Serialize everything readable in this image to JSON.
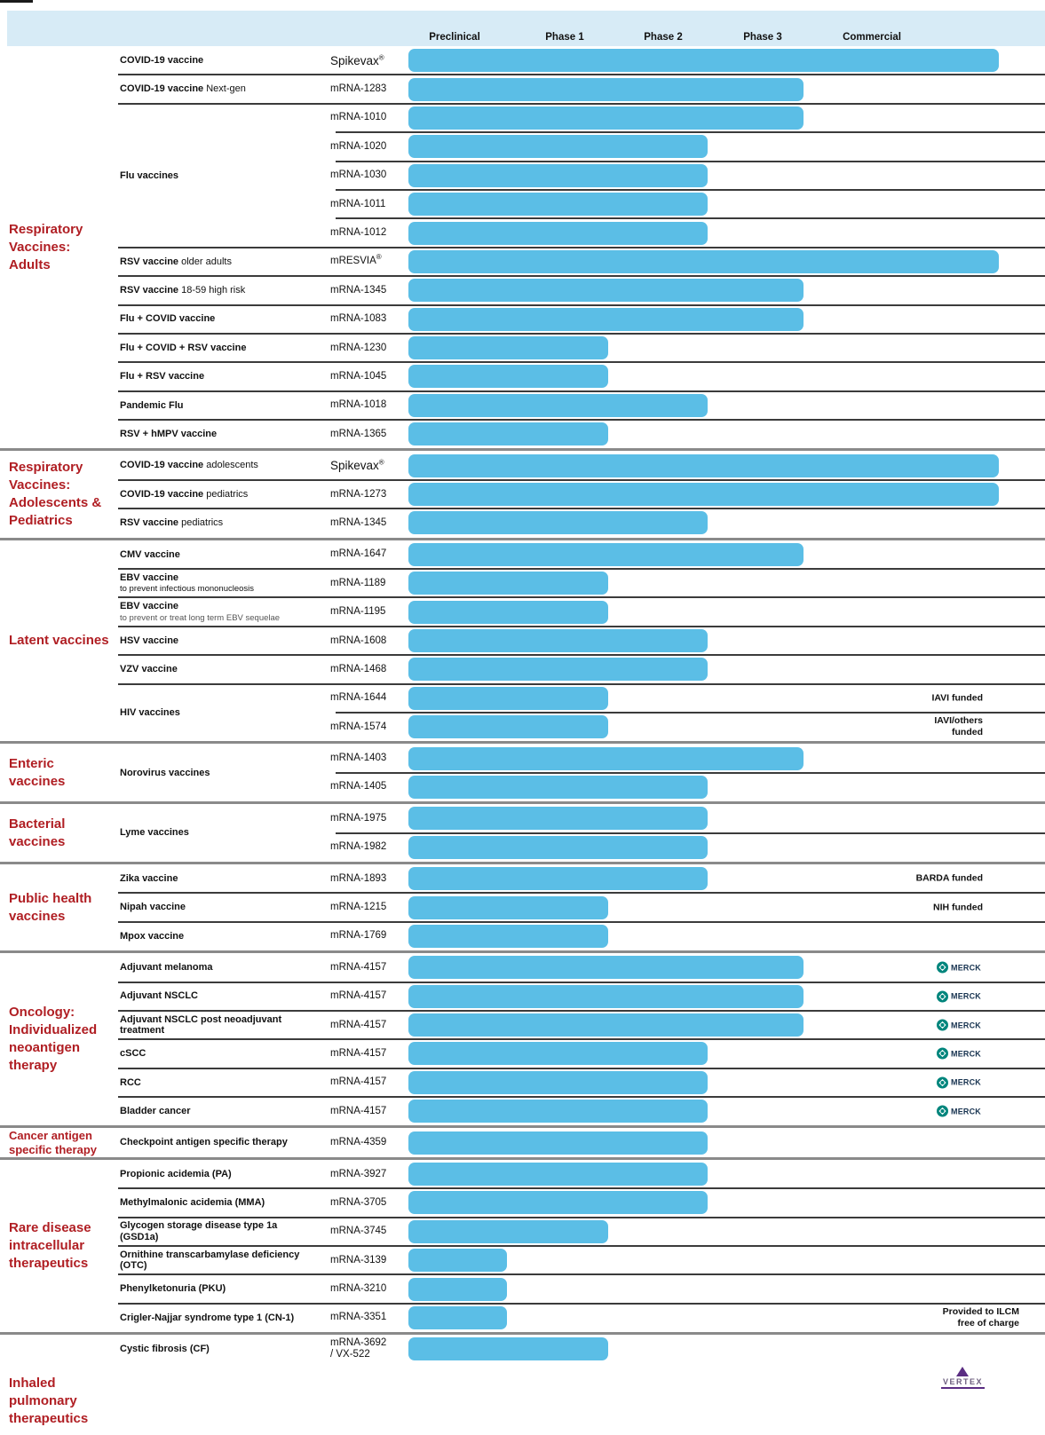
{
  "colors": {
    "bar_blue": "#5BBEE6",
    "header_band": "#D7EBF6",
    "category_red": "#B01E23",
    "separator_dark": "#3B3B3B",
    "separator_group": "#8A8A8A",
    "merck_teal": "#00857C",
    "vertex_purple": "#5A2D82"
  },
  "logos": {
    "merck": "MERCK",
    "vertex": "VERTEX"
  },
  "chart_data": {
    "type": "table",
    "title": "mRNA development pipeline by clinical phase",
    "phases": [
      "Preclinical",
      "Phase 1",
      "Phase 2",
      "Phase 3",
      "Commercial"
    ],
    "groups": [
      {
        "category": "Respiratory Vaccines: Adults",
        "programs": [
          {
            "name": "COVID-19 vaccine",
            "items": [
              {
                "code": "Spikevax",
                "reg": true,
                "stage": "commercial"
              }
            ]
          },
          {
            "name": "COVID-19 vaccine",
            "suffix": "Next-gen",
            "items": [
              {
                "code": "mRNA-1283",
                "stage": "phase3"
              }
            ]
          },
          {
            "name": "Flu vaccines",
            "items": [
              {
                "code": "mRNA-1010",
                "stage": "phase3"
              },
              {
                "code": "mRNA-1020",
                "stage": "phase2"
              },
              {
                "code": "mRNA-1030",
                "stage": "phase2"
              },
              {
                "code": "mRNA-1011",
                "stage": "phase2"
              },
              {
                "code": "mRNA-1012",
                "stage": "phase2"
              }
            ]
          },
          {
            "name": "RSV vaccine",
            "suffix": "older adults",
            "items": [
              {
                "code": "mRESVIA",
                "reg": true,
                "stage": "commercial"
              }
            ]
          },
          {
            "name": "RSV vaccine",
            "suffix": "18-59 high risk",
            "items": [
              {
                "code": "mRNA-1345",
                "stage": "phase3"
              }
            ]
          },
          {
            "name": "Flu + COVID vaccine",
            "items": [
              {
                "code": "mRNA-1083",
                "stage": "phase3"
              }
            ]
          },
          {
            "name": "Flu + COVID + RSV vaccine",
            "items": [
              {
                "code": "mRNA-1230",
                "stage": "phase1"
              }
            ]
          },
          {
            "name": "Flu + RSV vaccine",
            "items": [
              {
                "code": "mRNA-1045",
                "stage": "phase1"
              }
            ]
          },
          {
            "name": "Pandemic Flu",
            "items": [
              {
                "code": "mRNA-1018",
                "stage": "phase2"
              }
            ]
          },
          {
            "name": "RSV + hMPV vaccine",
            "items": [
              {
                "code": "mRNA-1365",
                "stage": "phase1"
              }
            ]
          }
        ]
      },
      {
        "category": "Respiratory Vaccines: Adolescents & Pediatrics",
        "programs": [
          {
            "name": "COVID-19 vaccine",
            "suffix": "adolescents",
            "items": [
              {
                "code": "Spikevax",
                "reg": true,
                "stage": "commercial"
              }
            ]
          },
          {
            "name": "COVID-19 vaccine",
            "suffix": "pediatrics",
            "items": [
              {
                "code": "mRNA-1273",
                "stage": "commercial"
              }
            ]
          },
          {
            "name": "RSV vaccine",
            "suffix": "pediatrics",
            "items": [
              {
                "code": "mRNA-1345",
                "stage": "phase2"
              }
            ]
          }
        ]
      },
      {
        "category": "Latent vaccines",
        "programs": [
          {
            "name": "CMV vaccine",
            "items": [
              {
                "code": "mRNA-1647",
                "stage": "phase3"
              }
            ]
          },
          {
            "name": "EBV vaccine",
            "subtitle": "to prevent infectious mononucleosis",
            "items": [
              {
                "code": "mRNA-1189",
                "stage": "phase1"
              }
            ]
          },
          {
            "name": "EBV vaccine",
            "subtitle": "to prevent or treat long term EBV sequelae",
            "subtitle_light": true,
            "items": [
              {
                "code": "mRNA-1195",
                "stage": "phase1"
              }
            ]
          },
          {
            "name": "HSV vaccine",
            "items": [
              {
                "code": "mRNA-1608",
                "stage": "phase2"
              }
            ]
          },
          {
            "name": "VZV vaccine",
            "items": [
              {
                "code": "mRNA-1468",
                "stage": "phase2"
              }
            ]
          },
          {
            "name": "HIV vaccines",
            "items": [
              {
                "code": "mRNA-1644",
                "stage": "phase1",
                "note": "IAVI funded"
              },
              {
                "code": "mRNA-1574",
                "stage": "phase1",
                "note": "IAVI/others\nfunded"
              }
            ]
          }
        ]
      },
      {
        "category": "Enteric vaccines",
        "programs": [
          {
            "name": "Norovirus vaccines",
            "items": [
              {
                "code": "mRNA-1403",
                "stage": "phase3"
              },
              {
                "code": "mRNA-1405",
                "stage": "phase2"
              }
            ]
          }
        ]
      },
      {
        "category": "Bacterial vaccines",
        "programs": [
          {
            "name": "Lyme vaccines",
            "items": [
              {
                "code": "mRNA-1975",
                "stage": "phase2"
              },
              {
                "code": "mRNA-1982",
                "stage": "phase2"
              }
            ]
          }
        ]
      },
      {
        "category": "Public health vaccines",
        "programs": [
          {
            "name": "Zika vaccine",
            "items": [
              {
                "code": "mRNA-1893",
                "stage": "phase2",
                "note": "BARDA funded"
              }
            ]
          },
          {
            "name": "Nipah vaccine",
            "items": [
              {
                "code": "mRNA-1215",
                "stage": "phase1",
                "note": "NIH funded"
              }
            ]
          },
          {
            "name": "Mpox vaccine",
            "items": [
              {
                "code": "mRNA-1769",
                "stage": "phase1"
              }
            ]
          }
        ]
      },
      {
        "category": "Oncology: Individualized neoantigen therapy",
        "programs": [
          {
            "name": "Adjuvant melanoma",
            "items": [
              {
                "code": "mRNA-4157",
                "stage": "phase3",
                "logo": "merck"
              }
            ]
          },
          {
            "name": "Adjuvant NSCLC",
            "items": [
              {
                "code": "mRNA-4157",
                "stage": "phase3",
                "logo": "merck"
              }
            ]
          },
          {
            "name": "Adjuvant NSCLC post neoadjuvant treatment",
            "items": [
              {
                "code": "mRNA-4157",
                "stage": "phase3",
                "logo": "merck"
              }
            ]
          },
          {
            "name": "cSCC",
            "items": [
              {
                "code": "mRNA-4157",
                "stage": "phase2",
                "logo": "merck"
              }
            ]
          },
          {
            "name": "RCC",
            "items": [
              {
                "code": "mRNA-4157",
                "stage": "phase2",
                "logo": "merck"
              }
            ]
          },
          {
            "name": "Bladder cancer",
            "items": [
              {
                "code": "mRNA-4157",
                "stage": "phase2",
                "logo": "merck"
              }
            ]
          }
        ]
      },
      {
        "category": "Cancer antigen specific therapy",
        "cat_small": true,
        "programs": [
          {
            "name": "Checkpoint antigen specific therapy",
            "items": [
              {
                "code": "mRNA-4359",
                "stage": "phase2"
              }
            ]
          }
        ]
      },
      {
        "category": "Rare disease intracellular therapeutics",
        "programs": [
          {
            "name": "Propionic acidemia (PA)",
            "items": [
              {
                "code": "mRNA-3927",
                "stage": "phase2"
              }
            ]
          },
          {
            "name": "Methylmalonic acidemia (MMA)",
            "items": [
              {
                "code": "mRNA-3705",
                "stage": "phase2"
              }
            ]
          },
          {
            "name": "Glycogen storage disease type 1a (GSD1a)",
            "items": [
              {
                "code": "mRNA-3745",
                "stage": "phase1"
              }
            ]
          },
          {
            "name": "Ornithine transcarbamylase deficiency (OTC)",
            "items": [
              {
                "code": "mRNA-3139",
                "stage": "preclinical"
              }
            ]
          },
          {
            "name": "Phenylketonuria (PKU)",
            "items": [
              {
                "code": "mRNA-3210",
                "stage": "preclinical"
              }
            ]
          },
          {
            "name": "Crigler-Najjar syndrome type 1 (CN-1)",
            "items": [
              {
                "code": "mRNA-3351",
                "stage": "preclinical",
                "note": "Provided to ILCM\nfree of charge"
              }
            ]
          }
        ]
      },
      {
        "category": "Inhaled pulmonary therapeutics",
        "programs": [
          {
            "name": "Cystic fibrosis (CF)",
            "items": [
              {
                "code": "mRNA-3692",
                "code2": "/ VX-522",
                "stage": "phase1",
                "logo": "vertex"
              }
            ]
          }
        ]
      }
    ]
  }
}
